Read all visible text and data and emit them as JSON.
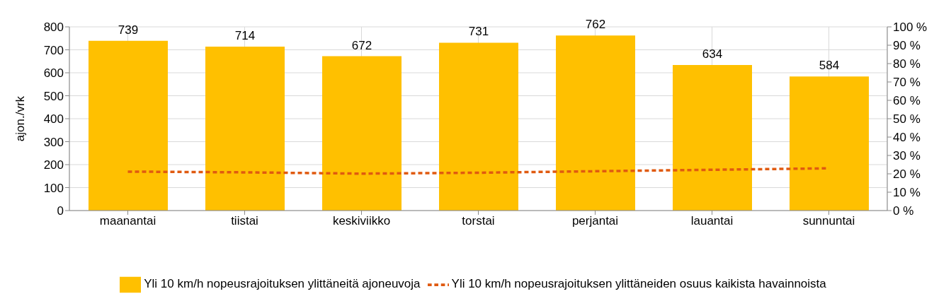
{
  "chart_data": {
    "type": "bar",
    "ylabel": "ajon./vrk",
    "categories": [
      "maanantai",
      "tiistai",
      "keskiviikko",
      "torstai",
      "perjantai",
      "lauantai",
      "sunnuntai"
    ],
    "series": [
      {
        "name": "Yli 10 km/h nopeusrajoituksen ylittäneitä ajoneuvoja",
        "color": "#ffc000",
        "values": [
          739,
          714,
          672,
          731,
          762,
          634,
          584
        ],
        "data_labels": true
      },
      {
        "name": "Yli 10 km/h nopeusrajoituksen ylittäneiden osuus kaikista havainnoista",
        "type": "line",
        "axis": "y2",
        "color": "#e05a10",
        "line_style": "dashed",
        "marker": "none",
        "values": [
          21.2,
          20.8,
          20.1,
          20.6,
          21.4,
          22.2,
          23.0
        ]
      }
    ],
    "ylim": [
      0,
      800
    ],
    "yticks": [
      0,
      100,
      200,
      300,
      400,
      500,
      600,
      700,
      800
    ],
    "y2lim": [
      0,
      100
    ],
    "y2ticks": [
      {
        "value": 0,
        "label": "0 %"
      },
      {
        "value": 10,
        "label": "10 %"
      },
      {
        "value": 20,
        "label": "20 %"
      },
      {
        "value": 30,
        "label": "30 %"
      },
      {
        "value": 40,
        "label": "40 %"
      },
      {
        "value": 50,
        "label": "50 %"
      },
      {
        "value": 60,
        "label": "60 %"
      },
      {
        "value": 70,
        "label": "70 %"
      },
      {
        "value": 80,
        "label": "80 %"
      },
      {
        "value": 90,
        "label": "90 %"
      },
      {
        "value": 100,
        "label": "100 %"
      }
    ],
    "grid": true,
    "legend": "bottom"
  }
}
